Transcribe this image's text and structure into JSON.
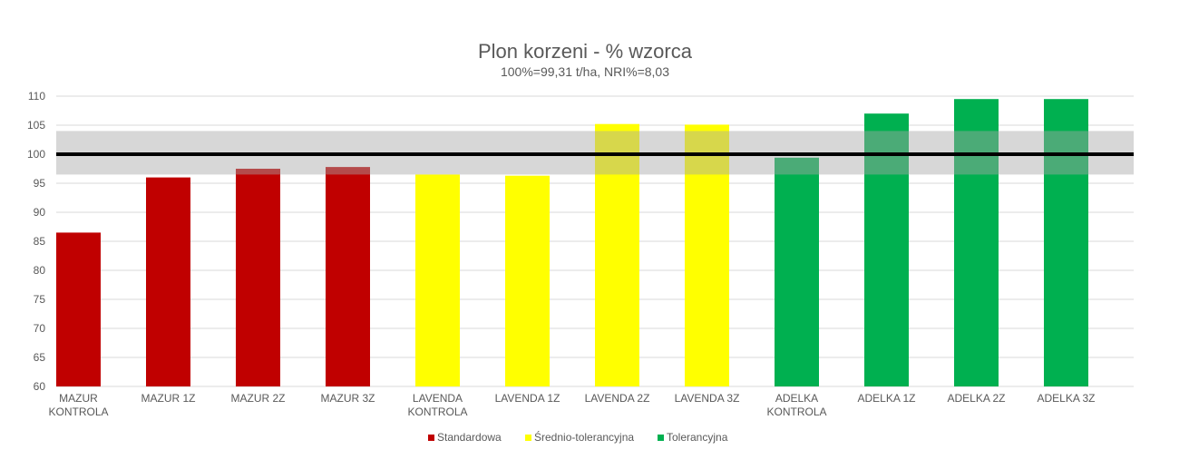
{
  "chart_data": {
    "type": "bar",
    "title": "Plon korzeni - % wzorca",
    "subtitle": "100%=99,31 t/ha, NRI%=8,03",
    "ylim": [
      60,
      110
    ],
    "yticks": [
      60,
      65,
      70,
      75,
      80,
      85,
      90,
      95,
      100,
      105,
      110
    ],
    "grid": true,
    "legend_placement": "bottom",
    "reference_line": 100,
    "nri_band": [
      96.5,
      104
    ],
    "categories": [
      [
        "MAZUR",
        "KONTROLA"
      ],
      [
        "MAZUR 1Z"
      ],
      [
        "MAZUR 2Z"
      ],
      [
        "MAZUR 3Z"
      ],
      [
        "LAVENDA",
        "KONTROLA"
      ],
      [
        "LAVENDA 1Z"
      ],
      [
        "LAVENDA 2Z"
      ],
      [
        "LAVENDA 3Z"
      ],
      [
        "ADELKA",
        "KONTROLA"
      ],
      [
        "ADELKA 1Z"
      ],
      [
        "ADELKA 2Z"
      ],
      [
        "ADELKA 3Z"
      ]
    ],
    "values": [
      86.5,
      96.0,
      97.5,
      97.8,
      96.5,
      96.3,
      105.2,
      105.1,
      99.4,
      107.0,
      109.5,
      109.5
    ],
    "groups": [
      0,
      0,
      0,
      0,
      1,
      1,
      1,
      1,
      2,
      2,
      2,
      2
    ],
    "series": [
      {
        "name": "Standardowa",
        "color": "#c00000"
      },
      {
        "name": "Średnio-tolerancyjna",
        "color": "#ffff00"
      },
      {
        "name": "Tolerancyjna",
        "color": "#00b050"
      }
    ],
    "band_color": "#a6a6a6",
    "reference_color": "#000000"
  }
}
